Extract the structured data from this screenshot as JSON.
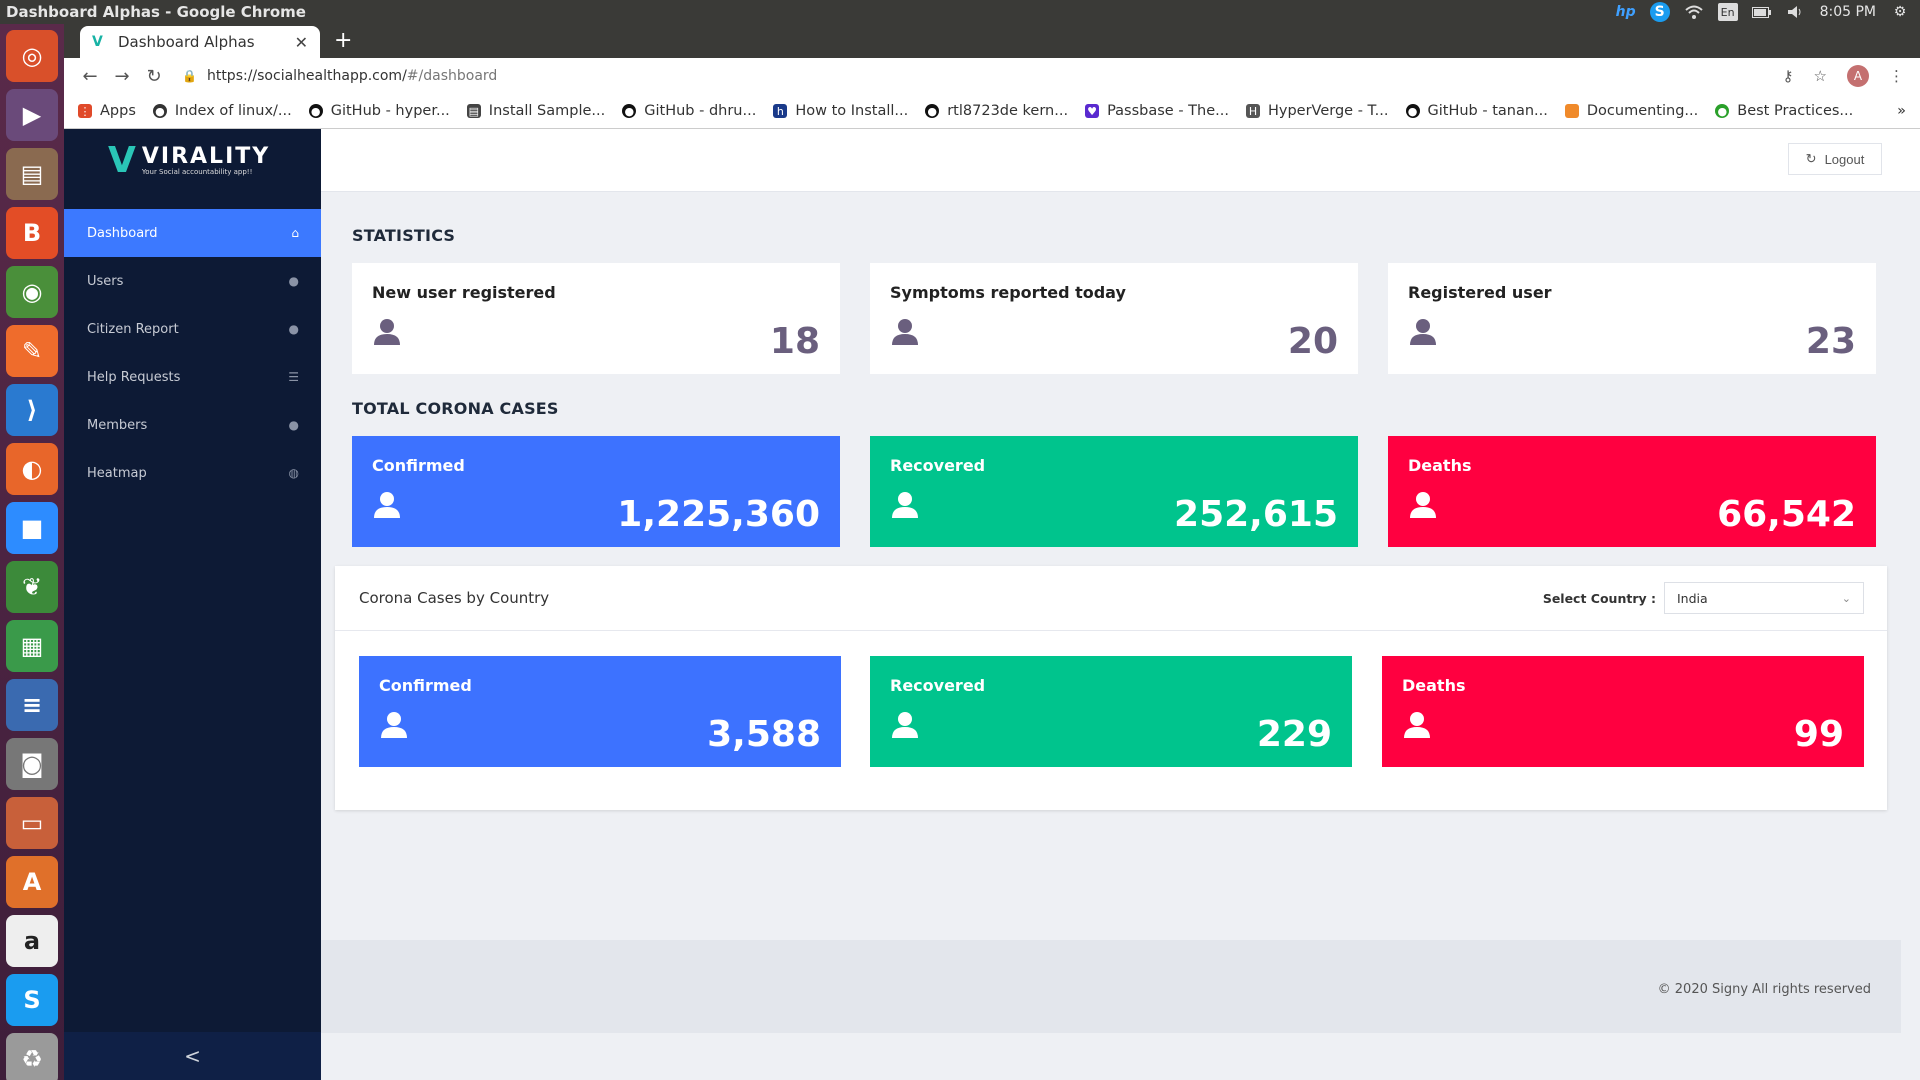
{
  "os": {
    "window_title": "Dashboard Alphas - Google Chrome",
    "time": "8:05 PM",
    "lang": "En"
  },
  "browser": {
    "tab_title": "Dashboard Alphas",
    "url_host": "https://socialhealthapp.com/",
    "url_path": "#/dashboard",
    "profile_initial": "A",
    "bookmarks": [
      "Apps",
      "Index of linux/...",
      "GitHub - hyper...",
      "Install Sample...",
      "GitHub - dhru...",
      "How to Install...",
      "rtl8723de kern...",
      "Passbase - The...",
      "HyperVerge - T...",
      "GitHub - tanan...",
      "Documenting...",
      "Best Practices..."
    ]
  },
  "brand": {
    "name": "VIRALITY",
    "tagline": "Your Social accountability app!!"
  },
  "sidebar": {
    "items": [
      {
        "label": "Dashboard",
        "icon": "home-icon"
      },
      {
        "label": "Users",
        "icon": "user-icon"
      },
      {
        "label": "Citizen Report",
        "icon": "user-icon"
      },
      {
        "label": "Help Requests",
        "icon": "list-icon"
      },
      {
        "label": "Members",
        "icon": "user-icon"
      },
      {
        "label": "Heatmap",
        "icon": "globe-icon"
      }
    ],
    "collapse_glyph": "<"
  },
  "header": {
    "logout_label": "Logout"
  },
  "statistics": {
    "title": "STATISTICS",
    "cards": [
      {
        "label": "New user registered",
        "value": "18"
      },
      {
        "label": "Symptoms reported today",
        "value": "20"
      },
      {
        "label": "Registered user",
        "value": "23"
      }
    ]
  },
  "total_cases": {
    "title": "TOTAL CORONA CASES",
    "cards": [
      {
        "label": "Confirmed",
        "value": "1,225,360",
        "color": "#3d72ff"
      },
      {
        "label": "Recovered",
        "value": "252,615",
        "color": "#00c48d"
      },
      {
        "label": "Deaths",
        "value": "66,542",
        "color": "#ff0040"
      }
    ]
  },
  "by_country": {
    "title": "Corona Cases by Country",
    "select_label": "Select Country :",
    "selected_country": "India",
    "cards": [
      {
        "label": "Confirmed",
        "value": "3,588"
      },
      {
        "label": "Recovered",
        "value": "229"
      },
      {
        "label": "Deaths",
        "value": "99"
      }
    ]
  },
  "footer": {
    "text": "© 2020 Signy All rights reserved"
  }
}
